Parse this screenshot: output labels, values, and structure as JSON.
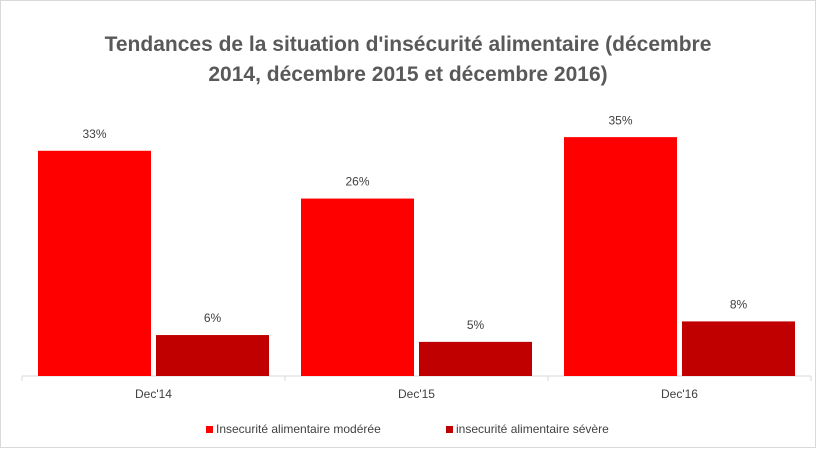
{
  "chart_data": {
    "type": "bar",
    "title": "Tendances de la situation d'insécurité alimentaire (décembre 2014, décembre 2015 et décembre 2016)",
    "categories": [
      "Dec'14",
      "Dec'15",
      "Dec'16"
    ],
    "series": [
      {
        "name": "Insecurité alimentaire modérée",
        "color": "#ff0000",
        "values": [
          33,
          26,
          35
        ],
        "value_labels": [
          "33%",
          "26%",
          "35%"
        ]
      },
      {
        "name": "insecurité alimentaire sévère",
        "color": "#c00000",
        "values": [
          6,
          5,
          8
        ],
        "value_labels": [
          "6%",
          "5%",
          "8%"
        ]
      }
    ],
    "ylim": [
      0,
      40
    ],
    "legend": "bottom"
  }
}
